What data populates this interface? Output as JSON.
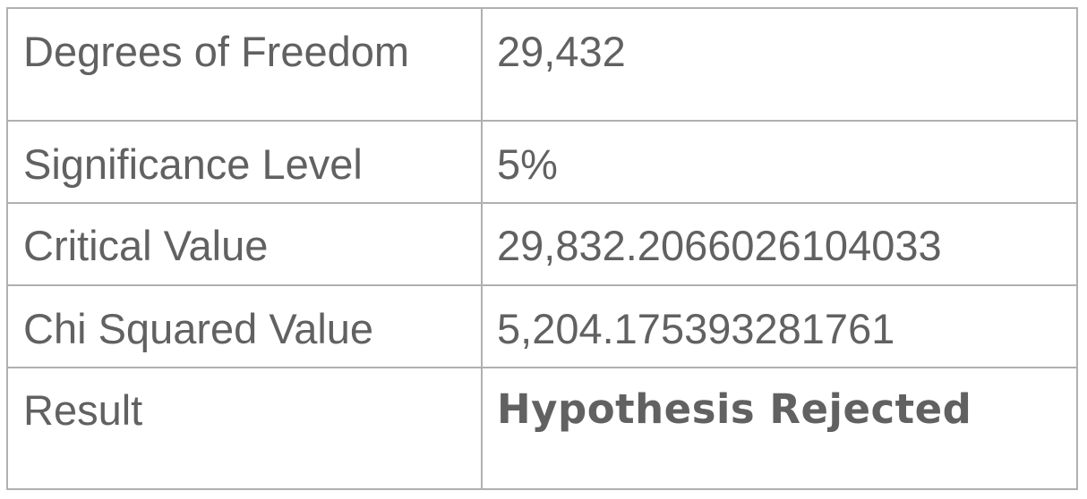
{
  "table": {
    "rows": [
      {
        "label": "Degrees of Freedom",
        "value": "29,432"
      },
      {
        "label": "Significance Level",
        "value": "5%"
      },
      {
        "label": "Critical Value",
        "value": "29,832.2066026104033"
      },
      {
        "label": "Chi Squared Value",
        "value": "5,204.175393281761"
      },
      {
        "label": "Result",
        "value": "Hypothesis Rejected"
      }
    ]
  },
  "colors": {
    "text": "#616161",
    "border": "#b0b0b0",
    "background": "#ffffff"
  }
}
